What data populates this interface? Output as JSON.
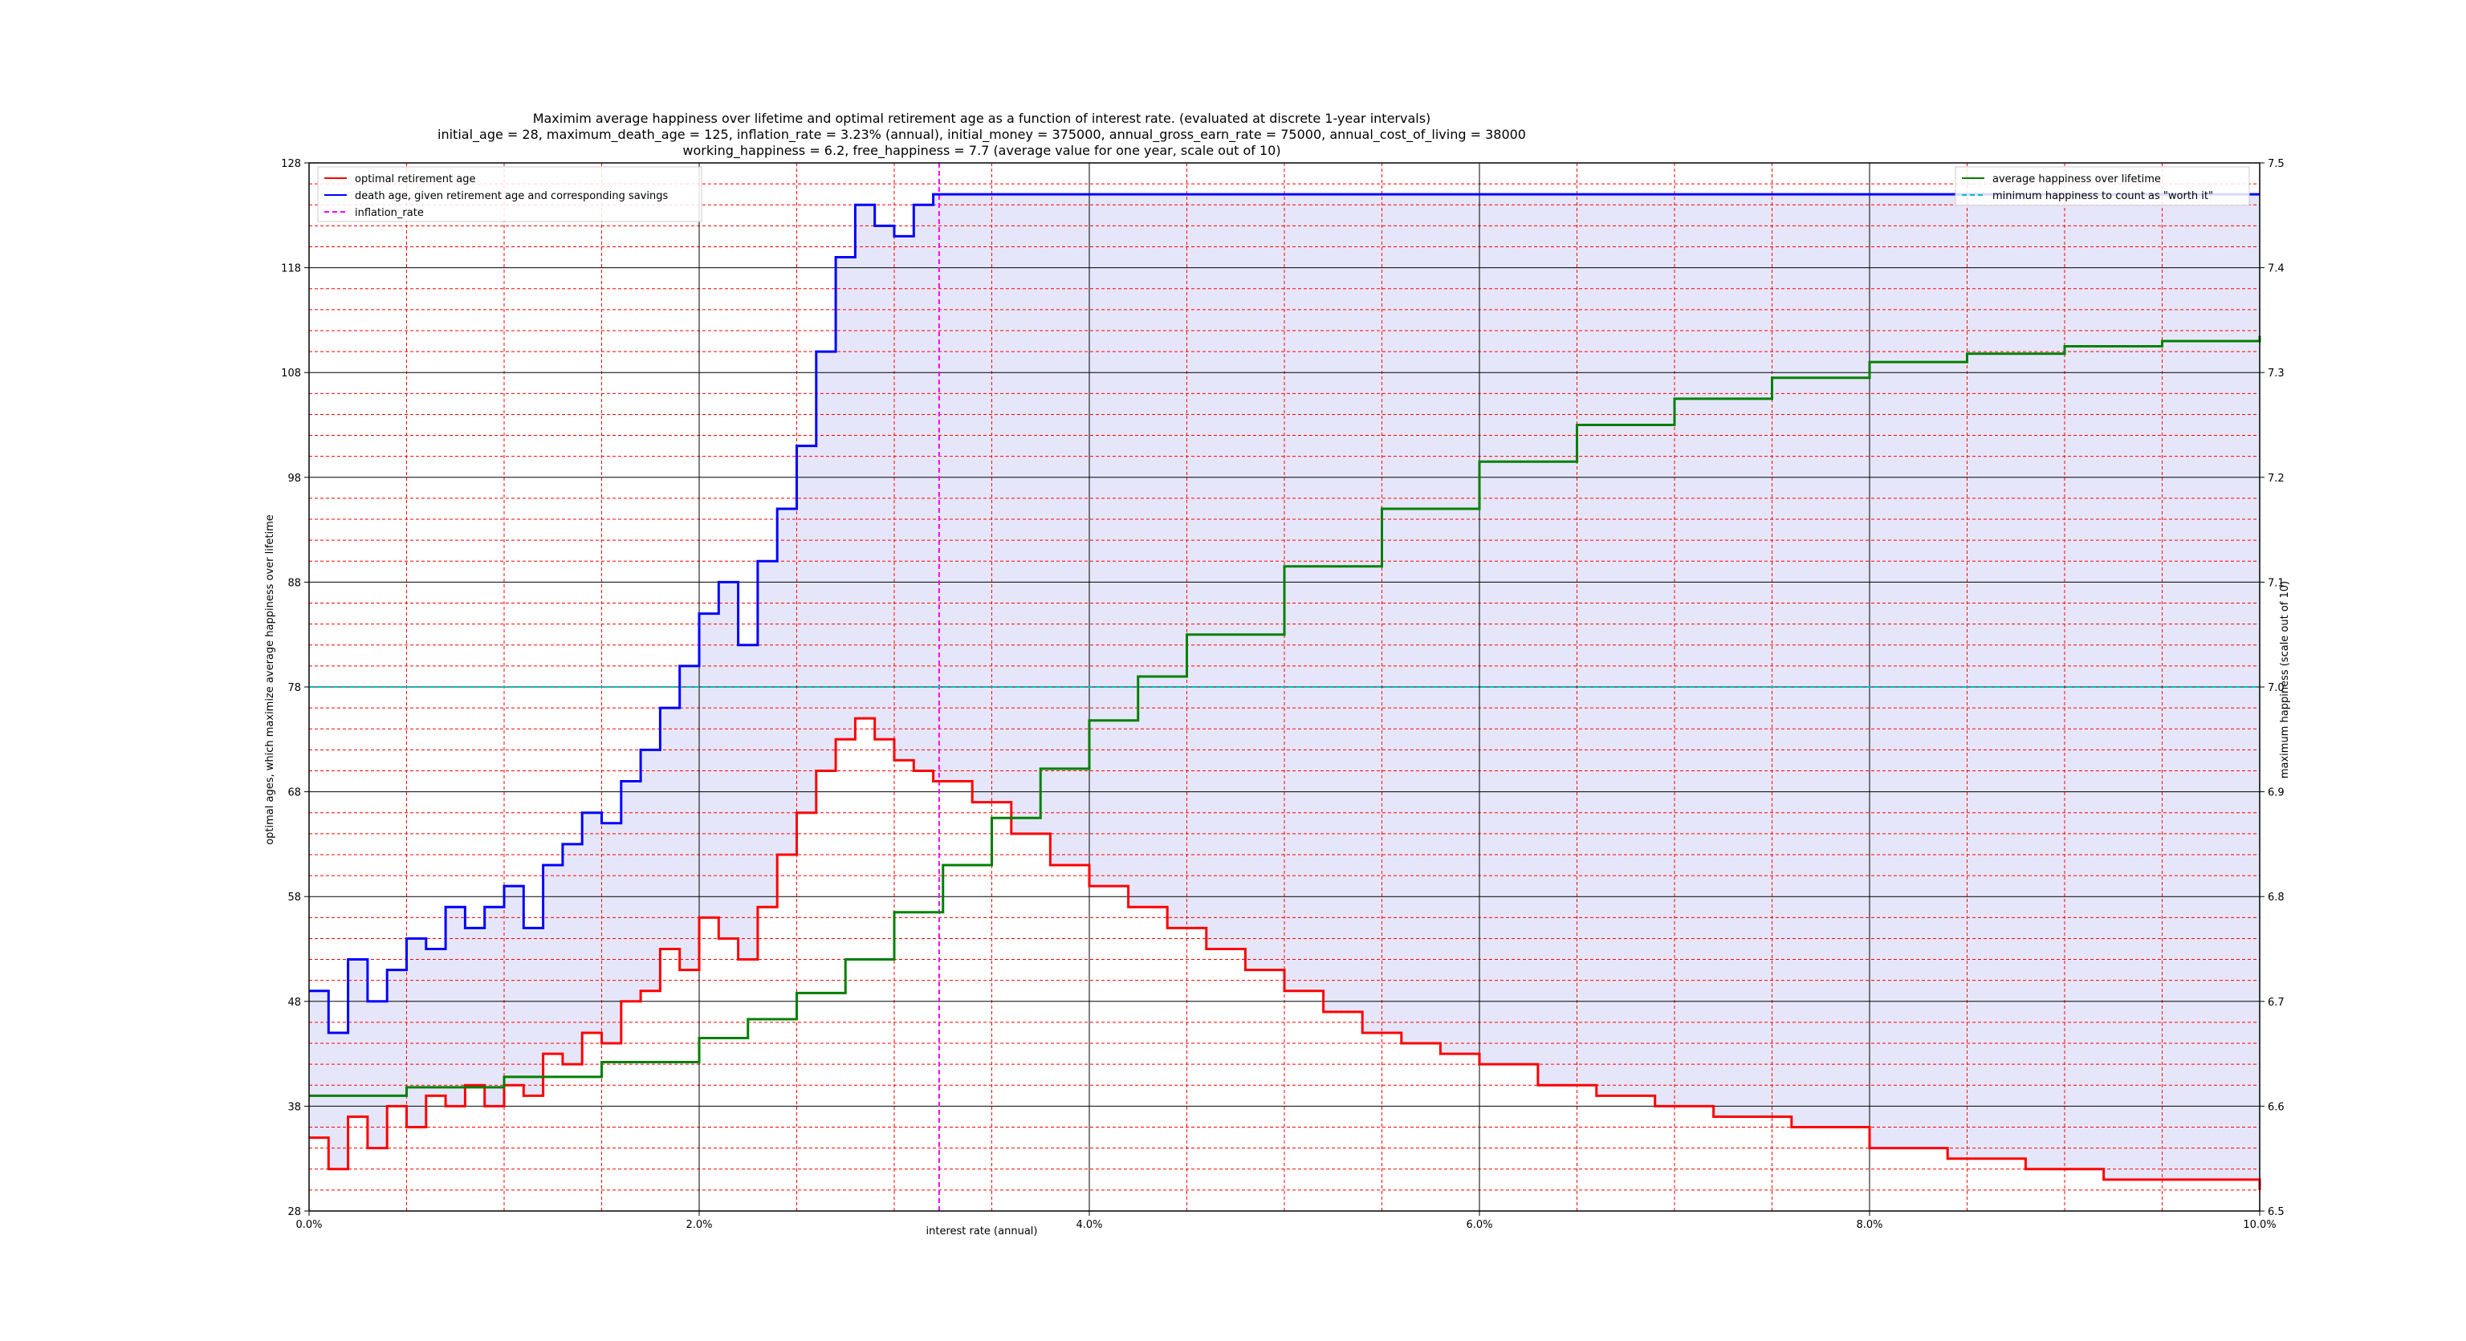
{
  "chart_data": {
    "type": "line",
    "title_lines": [
      "Maximim average happiness over lifetime and optimal retirement age as a function of interest rate. (evaluated at discrete 1-year intervals)",
      "initial_age = 28, maximum_death_age = 125, inflation_rate = 3.23% (annual), initial_money = 375000, annual_gross_earn_rate = 75000, annual_cost_of_living = 38000",
      "working_happiness = 6.2, free_happiness = 7.7 (average value for one year, scale out of 10)"
    ],
    "xlabel": "interest rate (annual)",
    "ylabel_left": "optimal ages, which maximize average happiness over lifetime",
    "ylabel_right": "maximum happiness (scale out of 10)",
    "x_range": [
      0,
      10
    ],
    "y_left_range": [
      28,
      128
    ],
    "y_right_range": [
      6.5,
      7.5
    ],
    "x_ticks": [
      {
        "value": 0,
        "label": "0.0%"
      },
      {
        "value": 2,
        "label": "2.0%"
      },
      {
        "value": 4,
        "label": "4.0%"
      },
      {
        "value": 6,
        "label": "6.0%"
      },
      {
        "value": 8,
        "label": "8.0%"
      },
      {
        "value": 10,
        "label": "10.0%"
      }
    ],
    "y_left_ticks": [
      28,
      38,
      48,
      58,
      68,
      78,
      88,
      98,
      108,
      118,
      128
    ],
    "y_right_ticks": [
      "6.5",
      "6.6",
      "6.7",
      "6.8",
      "6.9",
      "7.0",
      "7.1",
      "7.2",
      "7.3",
      "7.4",
      "7.5"
    ],
    "grid": {
      "major": true,
      "minor": true,
      "major_color": "#000000",
      "minor_color": "#ff0000"
    },
    "inflation_rate_x": 3.23,
    "min_happiness_y": 7.0,
    "fill_color": "#e6e6fa",
    "legend_left": [
      {
        "label": "optimal retirement age",
        "color": "#ff0000",
        "style": "solid"
      },
      {
        "label": "death age, given retirement age and corresponding savings",
        "color": "#0000ff",
        "style": "solid"
      },
      {
        "label": "inflation_rate",
        "color": "#ff00ff",
        "style": "dashed"
      }
    ],
    "legend_right": [
      {
        "label": "average happiness over lifetime",
        "color": "#008000",
        "style": "solid"
      },
      {
        "label": "minimum happiness to count as \"worth it\"",
        "color": "#00bfbf",
        "style": "dashed"
      }
    ],
    "series": [
      {
        "name": "optimal retirement age",
        "axis": "left",
        "color": "#ff0000",
        "x": [
          0,
          0.1,
          0.2,
          0.3,
          0.4,
          0.5,
          0.6,
          0.7,
          0.8,
          0.9,
          1.0,
          1.1,
          1.2,
          1.3,
          1.4,
          1.5,
          1.6,
          1.7,
          1.8,
          1.9,
          2.0,
          2.1,
          2.2,
          2.3,
          2.4,
          2.5,
          2.6,
          2.7,
          2.8,
          2.9,
          3.0,
          3.1,
          3.2,
          3.4,
          3.6,
          3.8,
          4.0,
          4.2,
          4.4,
          4.6,
          4.8,
          5.0,
          5.2,
          5.4,
          5.6,
          5.8,
          6.0,
          6.3,
          6.6,
          6.9,
          7.2,
          7.6,
          8.0,
          8.4,
          8.8,
          9.2,
          9.6,
          10.0
        ],
        "y": [
          35,
          32,
          37,
          34,
          38,
          36,
          39,
          38,
          40,
          38,
          40,
          39,
          43,
          42,
          45,
          44,
          48,
          49,
          53,
          51,
          56,
          54,
          52,
          57,
          62,
          66,
          70,
          73,
          75,
          73,
          71,
          70,
          69,
          67,
          64,
          61,
          59,
          57,
          55,
          53,
          51,
          49,
          47,
          45,
          44,
          43,
          42,
          40,
          39,
          38,
          37,
          36,
          34,
          33,
          32,
          31,
          31,
          30
        ]
      },
      {
        "name": "death age, given retirement age and corresponding savings",
        "axis": "left",
        "color": "#0000ff",
        "x": [
          0,
          0.1,
          0.2,
          0.3,
          0.4,
          0.5,
          0.6,
          0.7,
          0.8,
          0.9,
          1.0,
          1.1,
          1.2,
          1.3,
          1.4,
          1.5,
          1.6,
          1.7,
          1.8,
          1.9,
          2.0,
          2.1,
          2.2,
          2.3,
          2.4,
          2.5,
          2.6,
          2.7,
          2.8,
          2.9,
          3.0,
          3.1,
          3.2,
          3.5,
          4.0,
          5.0,
          6.0,
          7.0,
          8.0,
          9.0,
          10.0
        ],
        "y": [
          49,
          45,
          52,
          48,
          51,
          54,
          53,
          57,
          55,
          57,
          59,
          55,
          61,
          63,
          66,
          65,
          69,
          72,
          76,
          80,
          85,
          88,
          82,
          90,
          95,
          101,
          110,
          119,
          124,
          122,
          121,
          124,
          125,
          125,
          125,
          125,
          125,
          125,
          125,
          125,
          125
        ]
      },
      {
        "name": "average happiness over lifetime",
        "axis": "right",
        "color": "#008000",
        "x": [
          0,
          0.5,
          1.0,
          1.5,
          2.0,
          2.25,
          2.5,
          2.75,
          3.0,
          3.25,
          3.5,
          3.75,
          4.0,
          4.25,
          4.5,
          5.0,
          5.5,
          6.0,
          6.5,
          7.0,
          7.5,
          8.0,
          8.5,
          9.0,
          9.5,
          10.0
        ],
        "y": [
          6.61,
          6.618,
          6.628,
          6.642,
          6.665,
          6.683,
          6.708,
          6.74,
          6.785,
          6.83,
          6.875,
          6.922,
          6.968,
          7.01,
          7.05,
          7.115,
          7.17,
          7.215,
          7.25,
          7.275,
          7.295,
          7.31,
          7.318,
          7.325,
          7.33,
          7.335
        ]
      }
    ]
  }
}
